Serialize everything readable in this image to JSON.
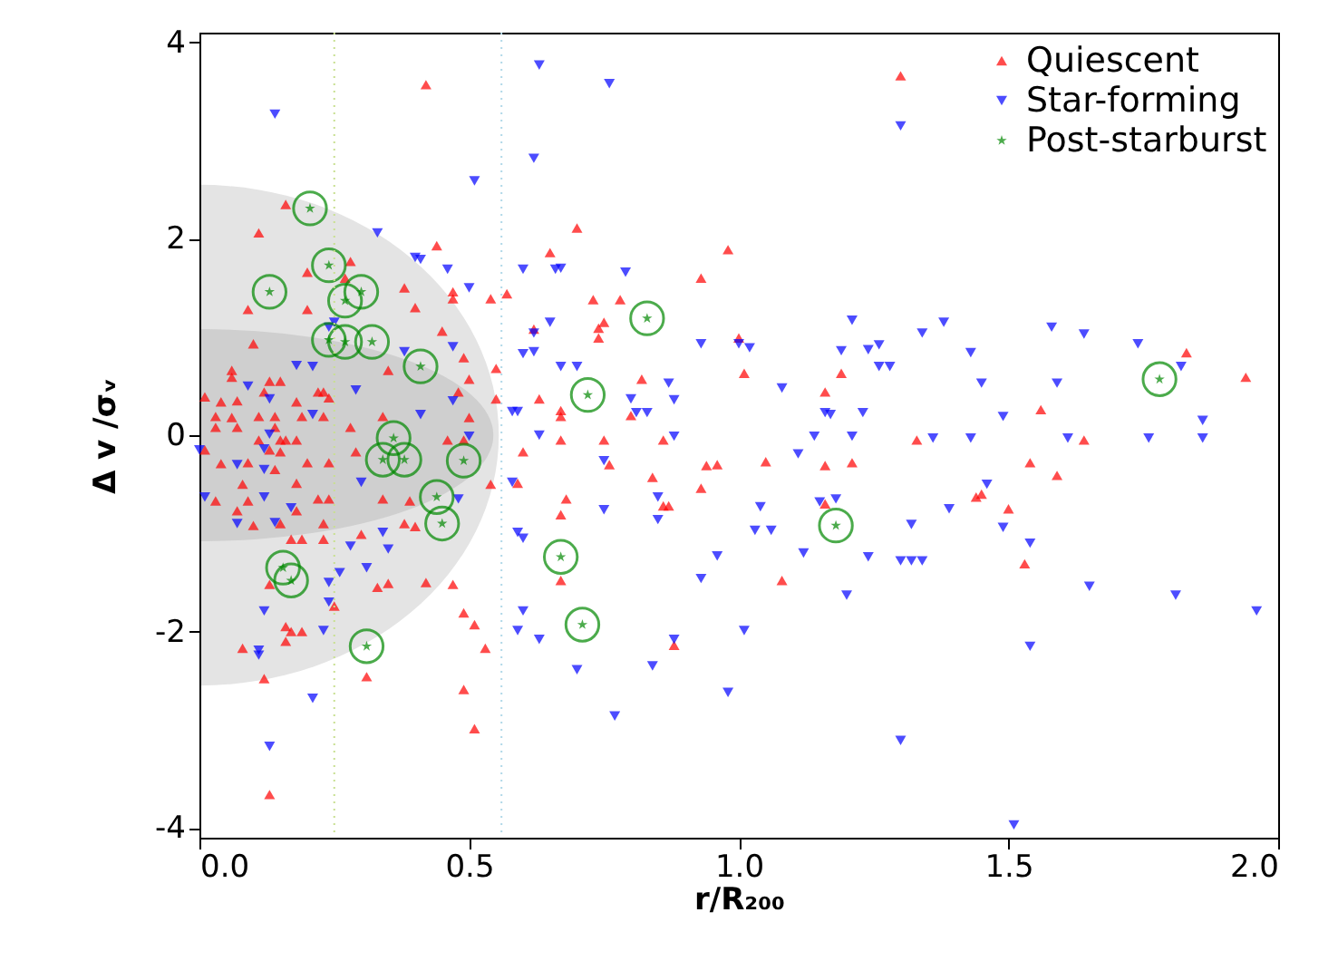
{
  "chart_data": {
    "type": "scatter",
    "xlabel": "r/R₂₀₀",
    "ylabel": "Δ v /σᵥ",
    "xlim": [
      0,
      2
    ],
    "xticks": [
      {
        "value": 0,
        "label": "0.0"
      },
      {
        "value": 0.5,
        "label": "0.5"
      },
      {
        "value": 1,
        "label": "1.0"
      },
      {
        "value": 1.5,
        "label": "1.5"
      },
      {
        "value": 2,
        "label": "2.0"
      }
    ],
    "ylim": [
      -4.1,
      4.1
    ],
    "yticks": [
      -4,
      -2,
      0,
      2,
      4
    ],
    "grid": false,
    "legend": "top right",
    "ref_lines": [
      {
        "axis": "x",
        "value": 0.25,
        "color": "#c8e090",
        "line_style": "dotted"
      },
      {
        "axis": "x",
        "value": 0.56,
        "color": "#b0d8e8",
        "line_style": "dotted"
      }
    ],
    "series": [
      {
        "name": "Quiescent",
        "color": "#ff0000",
        "marker": "triangle",
        "x": [
          1.3,
          0.7,
          0.98,
          0.93,
          0.73,
          0.78,
          0.75,
          0.74,
          0.74,
          0.82,
          1.01,
          1.0,
          1.19,
          1.16,
          0.67,
          0.67,
          0.75,
          0.86,
          0.8,
          0.76,
          0.84,
          0.93,
          0.94,
          0.96,
          1.05,
          1.16,
          1.21,
          1.33,
          0.68,
          0.67,
          0.86,
          0.87,
          1.16,
          0.67,
          1.08,
          0.88,
          1.83,
          1.94,
          1.56,
          1.64,
          1.54,
          1.59,
          1.44,
          1.45,
          1.5,
          1.53,
          0.42,
          0.16,
          0.11,
          0.44,
          0.65,
          0.28,
          0.2,
          0.38,
          0.47,
          0.54,
          0.57,
          0.09,
          0.2,
          0.4,
          0.47,
          0.62,
          0.27,
          0.1,
          0.45,
          0.49,
          0.35,
          0.06,
          0.06,
          0.13,
          0.15,
          0.22,
          0.23,
          0.12,
          0.5,
          0.55,
          0.48,
          0.01,
          0.04,
          0.07,
          0.18,
          0.24,
          0.55,
          0.03,
          0.06,
          0.11,
          0.14,
          0.19,
          0.23,
          0.34,
          0.5,
          0.67,
          0.03,
          0.07,
          0.14,
          0.28,
          0.63,
          0.11,
          0.15,
          0.16,
          0.18,
          0.46,
          0.49,
          0.01,
          0.13,
          0.15,
          0.29,
          0.6,
          0.09,
          0.2,
          0.24,
          0.04,
          0.14,
          0.08,
          0.18,
          0.54,
          0.59,
          0.03,
          0.09,
          0.07,
          0.18,
          0.22,
          0.24,
          0.34,
          0.39,
          0.38,
          0.15,
          0.1,
          0.23,
          0.3,
          0.4,
          0.23,
          0.17,
          0.19,
          0.13,
          0.33,
          0.35,
          0.42,
          0.47,
          0.25,
          0.16,
          0.17,
          0.19,
          0.16,
          0.08,
          0.49,
          0.51,
          0.53,
          0.12,
          0.31,
          0.49,
          0.51,
          0.13
        ],
        "values": [
          3.66,
          2.11,
          1.89,
          1.6,
          1.38,
          1.38,
          1.15,
          1.09,
          0.99,
          0.57,
          0.63,
          0.99,
          0.63,
          0.44,
          0.25,
          -0.05,
          -0.05,
          -0.05,
          0.2,
          -0.3,
          -0.43,
          -0.54,
          -0.31,
          -0.3,
          -0.27,
          -0.31,
          -0.28,
          -0.05,
          -0.65,
          -0.81,
          -0.72,
          -0.72,
          -0.7,
          -1.48,
          -1.48,
          -2.14,
          0.84,
          0.59,
          0.26,
          -0.05,
          -0.28,
          -0.41,
          -0.63,
          -0.6,
          -0.75,
          -1.31,
          3.57,
          2.35,
          2.06,
          1.93,
          1.86,
          1.77,
          1.66,
          1.5,
          1.46,
          1.39,
          1.44,
          1.28,
          1.28,
          1.3,
          1.39,
          1.08,
          1.6,
          0.93,
          1.06,
          0.79,
          0.66,
          0.66,
          0.59,
          0.55,
          0.55,
          0.44,
          0.44,
          0.44,
          0.57,
          0.68,
          0.44,
          0.39,
          0.34,
          0.35,
          0.34,
          0.38,
          0.37,
          0.19,
          0.18,
          0.19,
          0.19,
          0.19,
          0.19,
          0.19,
          0.18,
          0.19,
          0.08,
          0.08,
          0.08,
          0.08,
          0.37,
          -0.05,
          -0.05,
          -0.05,
          -0.05,
          -0.05,
          -0.05,
          -0.15,
          -0.15,
          -0.17,
          -0.17,
          -0.17,
          -0.28,
          -0.28,
          -0.28,
          -0.29,
          -0.35,
          -0.5,
          -0.49,
          -0.5,
          -0.49,
          -0.67,
          -0.67,
          -0.77,
          -0.77,
          -0.65,
          -0.65,
          -0.65,
          -0.67,
          -0.9,
          -0.9,
          -0.92,
          -0.9,
          -1.01,
          -0.93,
          -1.06,
          -1.06,
          -1.06,
          -1.52,
          -1.55,
          -1.51,
          -1.5,
          -1.52,
          -1.74,
          -1.95,
          -2.0,
          -2.0,
          -2.1,
          -2.17,
          -1.81,
          -1.93,
          -2.17,
          -2.48,
          -2.46,
          -2.59,
          -2.99,
          -3.66
        ]
      },
      {
        "name": "Star-forming",
        "color": "#0000ff",
        "marker": "triangle-down",
        "x": [
          0.76,
          1.3,
          0.67,
          0.79,
          0.93,
          1.0,
          1.02,
          1.21,
          1.19,
          1.24,
          1.26,
          1.26,
          1.28,
          0.67,
          0.7,
          0.87,
          0.88,
          0.8,
          0.81,
          0.83,
          1.08,
          1.16,
          1.17,
          1.23,
          1.14,
          1.21,
          0.88,
          0.75,
          1.11,
          0.85,
          0.75,
          0.85,
          1.04,
          1.15,
          1.18,
          1.03,
          1.06,
          1.32,
          0.96,
          1.12,
          1.24,
          1.3,
          1.32,
          0.93,
          1.2,
          1.01,
          0.88,
          0.7,
          0.84,
          0.98,
          0.77,
          1.3,
          1.34,
          1.38,
          1.58,
          1.64,
          1.74,
          1.82,
          1.43,
          1.45,
          1.59,
          1.49,
          1.36,
          1.43,
          1.61,
          1.76,
          1.86,
          1.86,
          1.46,
          1.39,
          1.49,
          1.54,
          1.34,
          1.65,
          1.81,
          1.96,
          1.54,
          1.51,
          0.63,
          0.14,
          0.62,
          0.51,
          0.33,
          0.4,
          0.41,
          0.46,
          0.6,
          0.5,
          0.66,
          0.65,
          0.25,
          0.24,
          0.38,
          0.47,
          0.18,
          0.21,
          0.62,
          0.6,
          0.62,
          0.09,
          0.13,
          0.29,
          0.21,
          0.41,
          0.58,
          0.59,
          0.47,
          0.13,
          0.12,
          0.0,
          0.07,
          0.12,
          0.5,
          0.3,
          0.63,
          0.58,
          0.01,
          0.12,
          0.17,
          0.48,
          0.07,
          0.14,
          0.59,
          0.6,
          0.34,
          0.28,
          0.35,
          0.31,
          0.26,
          0.24,
          0.24,
          0.12,
          0.23,
          0.11,
          0.11,
          0.6,
          0.59,
          0.63,
          0.21,
          0.13
        ],
        "values": [
          3.58,
          3.15,
          1.7,
          1.66,
          0.93,
          0.93,
          0.89,
          1.17,
          0.86,
          0.87,
          0.92,
          0.7,
          0.7,
          0.7,
          0.7,
          0.53,
          0.36,
          0.37,
          0.23,
          0.23,
          0.48,
          0.23,
          0.21,
          0.23,
          -0.01,
          -0.01,
          -0.01,
          -0.26,
          -0.19,
          -0.63,
          -0.76,
          -0.86,
          -0.73,
          -0.68,
          -0.65,
          -0.97,
          -0.97,
          -0.91,
          -1.23,
          -1.2,
          -1.24,
          -1.28,
          -1.28,
          -1.46,
          -1.63,
          -1.99,
          -2.08,
          -2.39,
          -2.35,
          -2.62,
          -2.86,
          -3.11,
          1.04,
          1.15,
          1.1,
          1.03,
          0.93,
          0.7,
          0.84,
          0.53,
          0.53,
          0.19,
          -0.03,
          -0.03,
          -0.03,
          -0.03,
          -0.03,
          0.15,
          -0.5,
          -0.75,
          -0.94,
          -1.1,
          -1.28,
          -1.54,
          -1.63,
          -1.79,
          -2.15,
          -3.97,
          3.77,
          3.27,
          2.82,
          2.59,
          2.06,
          1.81,
          1.79,
          1.69,
          1.69,
          1.5,
          1.69,
          1.15,
          1.15,
          1.1,
          0.85,
          0.9,
          0.71,
          0.7,
          1.04,
          0.83,
          0.85,
          0.5,
          0.37,
          0.46,
          0.21,
          0.21,
          0.24,
          0.24,
          0.35,
          0.01,
          -0.14,
          -0.15,
          -0.3,
          -0.35,
          -0.01,
          -0.48,
          0.0,
          -0.48,
          -0.63,
          -0.63,
          -0.74,
          -0.65,
          -0.9,
          -0.89,
          -0.99,
          -1.05,
          -0.99,
          -1.13,
          -1.16,
          -1.35,
          -1.4,
          -1.5,
          -1.7,
          -1.79,
          -1.99,
          -2.19,
          -2.24,
          -1.79,
          -1.99,
          -2.08,
          -2.68,
          -3.17
        ]
      },
      {
        "name": "Post-starburst",
        "color": "#008800",
        "marker": "star",
        "x": [
          0.205,
          0.24,
          0.13,
          0.27,
          0.3,
          0.24,
          0.27,
          0.32,
          0.41,
          0.83,
          0.72,
          1.78,
          0.36,
          0.34,
          0.38,
          0.49,
          0.44,
          0.45,
          0.155,
          0.17,
          0.67,
          0.71,
          1.18,
          0.31
        ],
        "values": [
          2.31,
          1.73,
          1.46,
          1.37,
          1.46,
          0.97,
          0.95,
          0.95,
          0.7,
          1.19,
          0.41,
          0.57,
          -0.03,
          -0.25,
          -0.25,
          -0.26,
          -0.63,
          -0.9,
          -1.35,
          -1.48,
          -1.24,
          -1.93,
          -0.92,
          -2.15
        ]
      }
    ]
  }
}
